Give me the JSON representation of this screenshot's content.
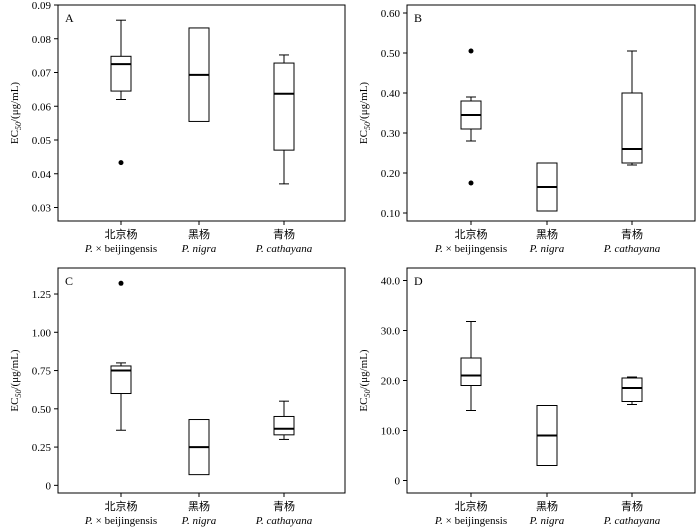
{
  "chart_data": [
    {
      "type": "box",
      "panel_label": "A",
      "ylabel": "EC50/(μg/mL)",
      "ylim": [
        0.026,
        0.09
      ],
      "yticks": [
        "0.03",
        "0.04",
        "0.05",
        "0.06",
        "0.07",
        "0.08",
        "0.09"
      ],
      "categories": [
        {
          "cn": "北京杨",
          "latin": "P. × beijingensis"
        },
        {
          "cn": "黑杨",
          "latin": "P. nigra"
        },
        {
          "cn": "青杨",
          "latin": "P. cathayana"
        }
      ],
      "boxes": [
        {
          "min": 0.062,
          "q1": 0.0645,
          "median": 0.0725,
          "q3": 0.0748,
          "max": 0.0855,
          "outliers": [
            0.0433
          ]
        },
        {
          "min": 0.0555,
          "q1": 0.0555,
          "median": 0.0693,
          "q3": 0.0832,
          "max": 0.0832,
          "outliers": []
        },
        {
          "min": 0.037,
          "q1": 0.047,
          "median": 0.0637,
          "q3": 0.0728,
          "max": 0.0752,
          "outliers": []
        }
      ]
    },
    {
      "type": "box",
      "panel_label": "B",
      "ylabel": "EC50/(μg/mL)",
      "ylim": [
        0.08,
        0.62
      ],
      "yticks": [
        "0.10",
        "0.20",
        "0.30",
        "0.40",
        "0.50",
        "0.60"
      ],
      "categories": [
        {
          "cn": "北京杨",
          "latin": "P. × beijingensis"
        },
        {
          "cn": "黑杨",
          "latin": "P. nigra"
        },
        {
          "cn": "青杨",
          "latin": "P. cathayana"
        }
      ],
      "boxes": [
        {
          "min": 0.28,
          "q1": 0.31,
          "median": 0.345,
          "q3": 0.38,
          "max": 0.39,
          "outliers": [
            0.505,
            0.175
          ]
        },
        {
          "min": 0.105,
          "q1": 0.105,
          "median": 0.165,
          "q3": 0.225,
          "max": 0.225,
          "outliers": []
        },
        {
          "min": 0.22,
          "q1": 0.225,
          "median": 0.26,
          "q3": 0.4,
          "max": 0.505,
          "outliers": []
        }
      ]
    },
    {
      "type": "box",
      "panel_label": "C",
      "ylabel": "EC50/(μg/mL)",
      "ylim": [
        -0.05,
        1.42
      ],
      "yticks": [
        "0",
        "0.25",
        "0.50",
        "0.75",
        "1.00",
        "1.25"
      ],
      "categories": [
        {
          "cn": "北京杨",
          "latin": "P. × beijingensis"
        },
        {
          "cn": "黑杨",
          "latin": "P. nigra"
        },
        {
          "cn": "青杨",
          "latin": "P. cathayana"
        }
      ],
      "boxes": [
        {
          "min": 0.36,
          "q1": 0.6,
          "median": 0.75,
          "q3": 0.78,
          "max": 0.8,
          "outliers": [
            1.32
          ]
        },
        {
          "min": 0.07,
          "q1": 0.07,
          "median": 0.25,
          "q3": 0.43,
          "max": 0.43,
          "outliers": []
        },
        {
          "min": 0.3,
          "q1": 0.33,
          "median": 0.37,
          "q3": 0.45,
          "max": 0.55,
          "outliers": []
        }
      ]
    },
    {
      "type": "box",
      "panel_label": "D",
      "ylabel": "EC50/(μg/mL)",
      "ylim": [
        -2.5,
        42.5
      ],
      "yticks": [
        "0",
        "10.0",
        "20.0",
        "30.0",
        "40.0"
      ],
      "categories": [
        {
          "cn": "北京杨",
          "latin": "P. × beijingensis"
        },
        {
          "cn": "黑杨",
          "latin": "P. nigra"
        },
        {
          "cn": "青杨",
          "latin": "P. cathayana"
        }
      ],
      "boxes": [
        {
          "min": 14.0,
          "q1": 19.0,
          "median": 21.0,
          "q3": 24.5,
          "max": 31.8,
          "outliers": []
        },
        {
          "min": 3.0,
          "q1": 3.0,
          "median": 9.0,
          "q3": 15.0,
          "max": 15.0,
          "outliers": []
        },
        {
          "min": 15.2,
          "q1": 15.8,
          "median": 18.5,
          "q3": 20.5,
          "max": 20.7,
          "outliers": []
        }
      ]
    }
  ]
}
